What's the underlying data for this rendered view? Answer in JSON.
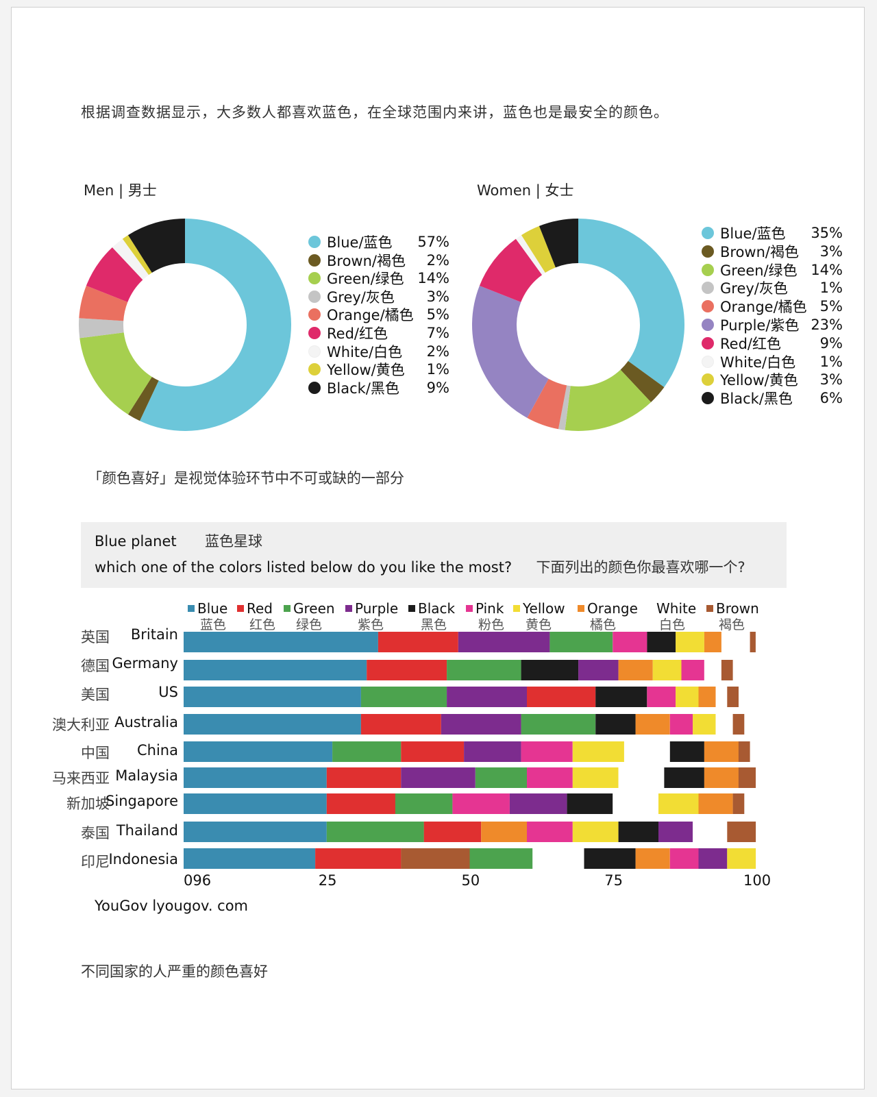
{
  "intro_text": "根据调查数据显示，大多数人都喜欢蓝色，在全球范围内来讲，蓝色也是最安全的颜色。",
  "caption_1": "「颜色喜好」是视觉体验环节中不可或缺的一部分",
  "caption_2": "不同国家的人严重的颜色喜好",
  "blue_planet": {
    "title_en": "Blue planet",
    "title_zh": "蓝色星球",
    "question_en": "which one of the colors listed below do you like the most?",
    "question_zh": "下面列出的颜色你最喜欢哪一个?"
  },
  "source": "YouGov lyougov. com",
  "chart_data": [
    {
      "type": "pie",
      "title": "Men  | 男士",
      "slices": [
        {
          "label": "Blue/蓝色",
          "value": 57,
          "display": "57%",
          "color": "#6cc6da"
        },
        {
          "label": "Brown/褐色",
          "value": 2,
          "display": "2%",
          "color": "#6b5a22"
        },
        {
          "label": "Green/绿色",
          "value": 14,
          "display": "14%",
          "color": "#a6cf4f"
        },
        {
          "label": "Grey/灰色",
          "value": 3,
          "display": "3%",
          "color": "#c4c4c4"
        },
        {
          "label": "Orange/橘色",
          "value": 5,
          "display": "5%",
          "color": "#ea7060"
        },
        {
          "label": "Red/红色",
          "value": 7,
          "display": "7%",
          "color": "#df2a6a"
        },
        {
          "label": "White/白色",
          "value": 2,
          "display": "2%",
          "color": "#f4f4f4"
        },
        {
          "label": "Yellow/黄色",
          "value": 1,
          "display": "1%",
          "color": "#ddd03a"
        },
        {
          "label": "Black/黑色",
          "value": 9,
          "display": "9%",
          "color": "#1b1b1b"
        }
      ]
    },
    {
      "type": "pie",
      "title": "Women  | 女士",
      "slices": [
        {
          "label": "Blue/蓝色",
          "value": 35,
          "display": "35%",
          "color": "#6cc6da"
        },
        {
          "label": "Brown/褐色",
          "value": 3,
          "display": "3%",
          "color": "#6b5a22"
        },
        {
          "label": "Green/绿色",
          "value": 14,
          "display": "14%",
          "color": "#a6cf4f"
        },
        {
          "label": "Grey/灰色",
          "value": 1,
          "display": "1%",
          "color": "#c4c4c4"
        },
        {
          "label": "Orange/橘色",
          "value": 5,
          "display": "5%",
          "color": "#ea7060"
        },
        {
          "label": "Purple/紫色",
          "value": 23,
          "display": "23%",
          "color": "#9584c2"
        },
        {
          "label": "Red/红色",
          "value": 9,
          "display": "9%",
          "color": "#df2a6a"
        },
        {
          "label": "White/白色",
          "value": 1,
          "display": "1%",
          "color": "#f4f4f4"
        },
        {
          "label": "Yellow/黄色",
          "value": 3,
          "display": "3%",
          "color": "#ddd03a"
        },
        {
          "label": "Black/黑色",
          "value": 6,
          "display": "6%",
          "color": "#1b1b1b"
        }
      ]
    },
    {
      "type": "bar",
      "orientation": "horizontal",
      "stacked": true,
      "legend": [
        {
          "en": "Blue",
          "zh": "蓝色",
          "color": "#3a8cb0"
        },
        {
          "en": "Red",
          "zh": "红色",
          "color": "#e03030"
        },
        {
          "en": "Green",
          "zh": "绿色",
          "color": "#4ca34e"
        },
        {
          "en": "Purple",
          "zh": "紫色",
          "color": "#7d2c8e"
        },
        {
          "en": "Black",
          "zh": "黑色",
          "color": "#1c1c1c"
        },
        {
          "en": "Pink",
          "zh": "粉色",
          "color": "#e53592"
        },
        {
          "en": "Yellow",
          "zh": "黄色",
          "color": "#f2dd34"
        },
        {
          "en": "Orange",
          "zh": "橘色",
          "color": "#ef8a2a"
        },
        {
          "en": "White",
          "zh": "白色",
          "color": "#ffffff"
        },
        {
          "en": "Brown",
          "zh": "褐色",
          "color": "#a85a32"
        }
      ],
      "xlim": [
        0,
        100
      ],
      "x_ticks": [
        "096",
        "25",
        "50",
        "75",
        "100"
      ],
      "rows": [
        {
          "zh": "英国",
          "en": "Britain",
          "segments": [
            {
              "c": "Blue",
              "v": 34
            },
            {
              "c": "Red",
              "v": 14
            },
            {
              "c": "Purple",
              "v": 16
            },
            {
              "c": "Green",
              "v": 11
            },
            {
              "c": "Pink",
              "v": 6
            },
            {
              "c": "Black",
              "v": 5
            },
            {
              "c": "Yellow",
              "v": 5
            },
            {
              "c": "Orange",
              "v": 3
            },
            {
              "c": "White",
              "v": 5
            },
            {
              "c": "Brown",
              "v": 1
            }
          ]
        },
        {
          "zh": "德国",
          "en": "Germany",
          "segments": [
            {
              "c": "Blue",
              "v": 32
            },
            {
              "c": "Red",
              "v": 14
            },
            {
              "c": "Green",
              "v": 13
            },
            {
              "c": "Black",
              "v": 10
            },
            {
              "c": "Purple",
              "v": 7
            },
            {
              "c": "Orange",
              "v": 6
            },
            {
              "c": "Yellow",
              "v": 5
            },
            {
              "c": "Pink",
              "v": 4
            },
            {
              "c": "White",
              "v": 3
            },
            {
              "c": "Brown",
              "v": 2
            }
          ]
        },
        {
          "zh": "美国",
          "en": "US",
          "segments": [
            {
              "c": "Blue",
              "v": 31
            },
            {
              "c": "Green",
              "v": 15
            },
            {
              "c": "Purple",
              "v": 14
            },
            {
              "c": "Red",
              "v": 12
            },
            {
              "c": "Black",
              "v": 9
            },
            {
              "c": "Pink",
              "v": 5
            },
            {
              "c": "Yellow",
              "v": 4
            },
            {
              "c": "Orange",
              "v": 3
            },
            {
              "c": "White",
              "v": 2
            },
            {
              "c": "Brown",
              "v": 2
            }
          ]
        },
        {
          "zh": "澳大利亚",
          "en": "Australia",
          "segments": [
            {
              "c": "Blue",
              "v": 31
            },
            {
              "c": "Red",
              "v": 14
            },
            {
              "c": "Purple",
              "v": 14
            },
            {
              "c": "Green",
              "v": 13
            },
            {
              "c": "Black",
              "v": 7
            },
            {
              "c": "Orange",
              "v": 6
            },
            {
              "c": "Pink",
              "v": 4
            },
            {
              "c": "Yellow",
              "v": 4
            },
            {
              "c": "White",
              "v": 3
            },
            {
              "c": "Brown",
              "v": 2
            }
          ]
        },
        {
          "zh": "中国",
          "en": "China",
          "segments": [
            {
              "c": "Blue",
              "v": 26
            },
            {
              "c": "Green",
              "v": 12
            },
            {
              "c": "Red",
              "v": 11
            },
            {
              "c": "Purple",
              "v": 10
            },
            {
              "c": "Pink",
              "v": 9
            },
            {
              "c": "Yellow",
              "v": 9
            },
            {
              "c": "White",
              "v": 8
            },
            {
              "c": "Black",
              "v": 6
            },
            {
              "c": "Orange",
              "v": 6
            },
            {
              "c": "Brown",
              "v": 2
            }
          ]
        },
        {
          "zh": "马来西亚",
          "en": "Malaysia",
          "segments": [
            {
              "c": "Blue",
              "v": 25
            },
            {
              "c": "Red",
              "v": 13
            },
            {
              "c": "Purple",
              "v": 13
            },
            {
              "c": "Green",
              "v": 9
            },
            {
              "c": "Pink",
              "v": 8
            },
            {
              "c": "Yellow",
              "v": 8
            },
            {
              "c": "White",
              "v": 8
            },
            {
              "c": "Black",
              "v": 7
            },
            {
              "c": "Orange",
              "v": 6
            },
            {
              "c": "Brown",
              "v": 3
            }
          ]
        },
        {
          "zh": "新加坡",
          "en": "Singapore",
          "segments": [
            {
              "c": "Blue",
              "v": 25
            },
            {
              "c": "Red",
              "v": 12
            },
            {
              "c": "Green",
              "v": 10
            },
            {
              "c": "Pink",
              "v": 10
            },
            {
              "c": "Purple",
              "v": 10
            },
            {
              "c": "Black",
              "v": 8
            },
            {
              "c": "White",
              "v": 8
            },
            {
              "c": "Yellow",
              "v": 7
            },
            {
              "c": "Orange",
              "v": 6
            },
            {
              "c": "Brown",
              "v": 2
            }
          ]
        },
        {
          "zh": "泰国",
          "en": "Thailand",
          "segments": [
            {
              "c": "Blue",
              "v": 25
            },
            {
              "c": "Green",
              "v": 17
            },
            {
              "c": "Red",
              "v": 10
            },
            {
              "c": "Orange",
              "v": 8
            },
            {
              "c": "Pink",
              "v": 8
            },
            {
              "c": "Yellow",
              "v": 8
            },
            {
              "c": "Black",
              "v": 7
            },
            {
              "c": "Purple",
              "v": 6
            },
            {
              "c": "White",
              "v": 6
            },
            {
              "c": "Brown",
              "v": 5
            }
          ]
        },
        {
          "zh": "印尼",
          "en": "Indonesia",
          "segments": [
            {
              "c": "Blue",
              "v": 23
            },
            {
              "c": "Red",
              "v": 15
            },
            {
              "c": "Brown",
              "v": 12
            },
            {
              "c": "Green",
              "v": 11
            },
            {
              "c": "White",
              "v": 9
            },
            {
              "c": "Black",
              "v": 9
            },
            {
              "c": "Orange",
              "v": 6
            },
            {
              "c": "Pink",
              "v": 5
            },
            {
              "c": "Purple",
              "v": 5
            },
            {
              "c": "Yellow",
              "v": 5
            }
          ]
        }
      ]
    }
  ]
}
